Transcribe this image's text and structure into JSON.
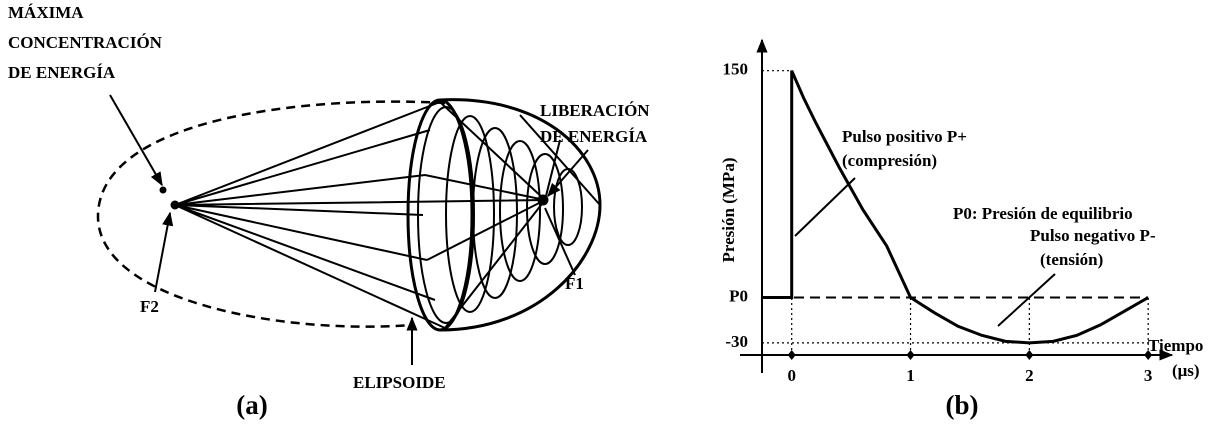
{
  "panel_a": {
    "max_concentration": [
      "MÁXIMA",
      "CONCENTRACIÓN",
      "DE ENERGÍA"
    ],
    "energy_release": [
      "LIBERACIÓN",
      "DE ENERGÍA"
    ],
    "f1": "F1",
    "f2": "F2",
    "ellipsoid": "ELIPSOIDE",
    "caption": "(a)"
  },
  "chart_data": {
    "type": "line",
    "caption": "(b)",
    "y_label": "Presión (MPa)",
    "x_label": [
      "Tiempo",
      "(μs)"
    ],
    "annotations": {
      "positive": [
        "Pulso positivo P+",
        "(compresión)"
      ],
      "equilibrium": "P0: Presión de equilibrio",
      "negative": [
        "Pulso negativo P-",
        "(tensión)"
      ]
    },
    "x": [
      -0.25,
      0,
      0,
      0.1,
      0.2,
      0.4,
      0.6,
      0.8,
      1.0,
      1.2,
      1.4,
      1.6,
      1.8,
      2.0,
      2.2,
      2.4,
      2.6,
      2.8,
      3.0
    ],
    "values": [
      0,
      0,
      150,
      132,
      116,
      86,
      58,
      34,
      0,
      -10,
      -19,
      -25,
      -29,
      -30,
      -29,
      -25,
      -18,
      -9,
      0
    ],
    "color": "#000000",
    "xlim": [
      -0.25,
      3.15
    ],
    "ylim": [
      -38,
      165
    ],
    "xticks": [
      0,
      1,
      2,
      3
    ],
    "yticks": [
      150,
      {
        "value": 0,
        "label": "P0"
      },
      -30
    ]
  }
}
